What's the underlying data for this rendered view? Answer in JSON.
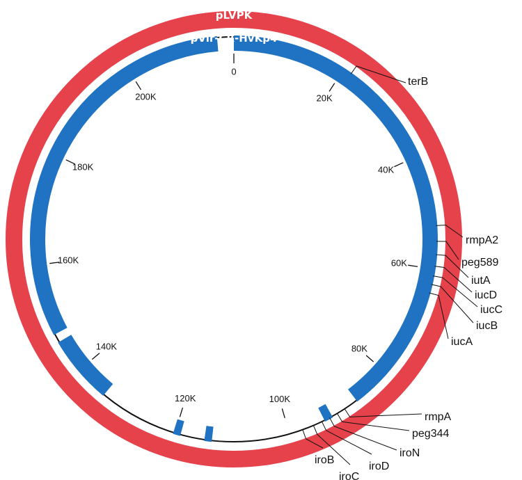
{
  "outer_ring": {
    "label": "pLVPK",
    "color": "#e5424b"
  },
  "inner_ring": {
    "label": "pVir-CR-HvKp4",
    "color": "#1f73c2",
    "segments": [
      {
        "start": 0,
        "end": 87000
      },
      {
        "start": 92000,
        "end": 93500
      },
      {
        "start": 113500,
        "end": 114800
      },
      {
        "start": 119000,
        "end": 120300
      },
      {
        "start": 134000,
        "end": 146000
      },
      {
        "start": 147500,
        "end": 216500
      }
    ]
  },
  "backbone": {
    "color": "#111111"
  },
  "genome_length": 219400,
  "ticks": [
    {
      "pos": 0,
      "label": "0"
    },
    {
      "pos": 20000,
      "label": "20K"
    },
    {
      "pos": 40000,
      "label": "40K"
    },
    {
      "pos": 60000,
      "label": "60K"
    },
    {
      "pos": 80000,
      "label": "80K"
    },
    {
      "pos": 100000,
      "label": "100K"
    },
    {
      "pos": 120000,
      "label": "120K"
    },
    {
      "pos": 140000,
      "label": "140K"
    },
    {
      "pos": 160000,
      "label": "160K"
    },
    {
      "pos": 180000,
      "label": "180K"
    },
    {
      "pos": 200000,
      "label": "200K"
    }
  ],
  "genes": [
    {
      "name": "terB",
      "pos": 21500
    },
    {
      "name": "rmpA2",
      "pos": 52500
    },
    {
      "name": "peg589",
      "pos": 55200
    },
    {
      "name": "iutA",
      "pos": 57500
    },
    {
      "name": "iucD",
      "pos": 59500
    },
    {
      "name": "iucC",
      "pos": 61200
    },
    {
      "name": "iucB",
      "pos": 62700
    },
    {
      "name": "iucA",
      "pos": 64200
    },
    {
      "name": "rmpA",
      "pos": 89500
    },
    {
      "name": "peg344",
      "pos": 91000
    },
    {
      "name": "iroN",
      "pos": 92500
    },
    {
      "name": "iroD",
      "pos": 94000
    },
    {
      "name": "iroC",
      "pos": 95600
    },
    {
      "name": "iroB",
      "pos": 97600
    }
  ]
}
